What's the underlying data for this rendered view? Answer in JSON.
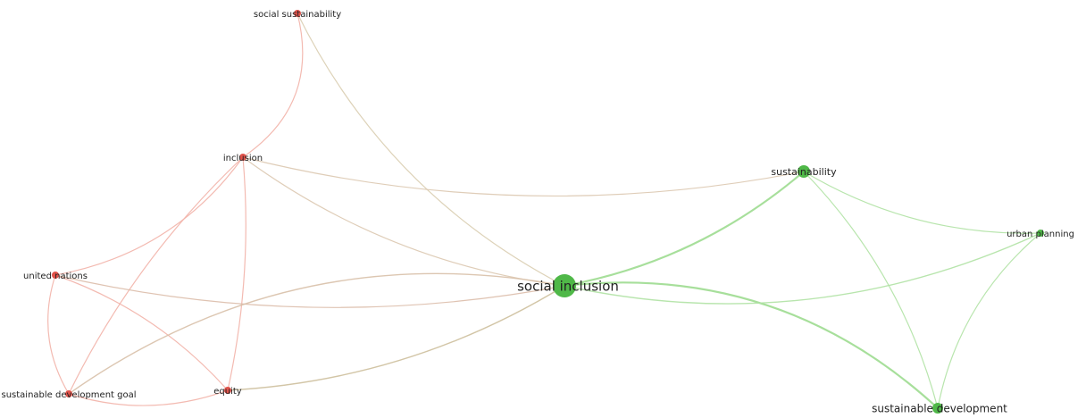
{
  "nodes": [
    {
      "label": "social sustainability"
    },
    {
      "label": "inclusion"
    },
    {
      "label": "united nations"
    },
    {
      "label": "sustainable development goal"
    },
    {
      "label": "equity"
    },
    {
      "label": "social inclusion"
    },
    {
      "label": "sustainability"
    },
    {
      "label": "urban planning"
    },
    {
      "label": "sustainable development"
    }
  ]
}
